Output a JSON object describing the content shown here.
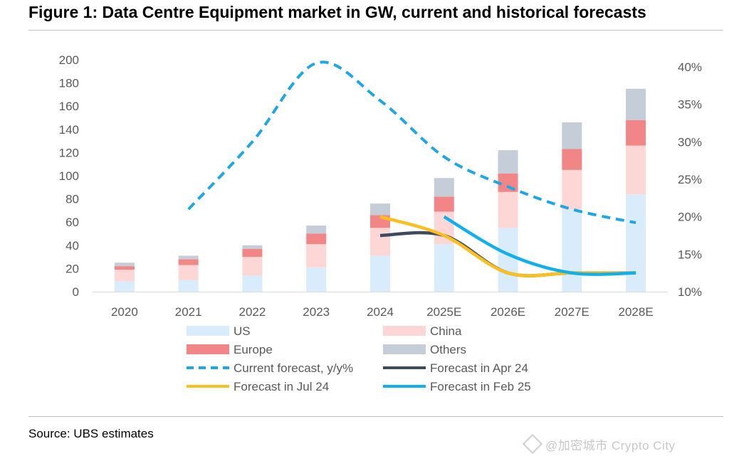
{
  "page": {
    "title": "Figure 1: Data Centre Equipment market in GW, current and historical forecasts",
    "source": "Source: UBS estimates",
    "watermark": "@加密城市 Crypto City"
  },
  "chart_data": {
    "type": "bar",
    "stacked": true,
    "categories": [
      "2020",
      "2021",
      "2022",
      "2023",
      "2024",
      "2025E",
      "2026E",
      "2027E",
      "2028E"
    ],
    "y_left": {
      "min": 0,
      "max": 200,
      "ticks": [
        "0",
        "20",
        "40",
        "60",
        "80",
        "100",
        "120",
        "140",
        "160",
        "180",
        "200"
      ]
    },
    "y_right": {
      "min": 10,
      "max": 40,
      "ticks": [
        "10%",
        "15%",
        "20%",
        "25%",
        "30%",
        "35%",
        "40%"
      ]
    },
    "bar_series": [
      {
        "name": "US",
        "color": "#d9ecfb",
        "values": [
          9,
          10,
          14,
          21,
          31,
          41,
          55,
          71,
          84
        ]
      },
      {
        "name": "China",
        "color": "#fdd6d6",
        "values": [
          10,
          13,
          16,
          20,
          24,
          28,
          31,
          34,
          42
        ]
      },
      {
        "name": "Europe",
        "color": "#f28585",
        "values": [
          3,
          5,
          7,
          9,
          11,
          13,
          16,
          18,
          22
        ]
      },
      {
        "name": "Others",
        "color": "#c4cdd8",
        "values": [
          3,
          3,
          3,
          7,
          10,
          16,
          20,
          23,
          27
        ]
      }
    ],
    "line_series": [
      {
        "name": "Current forecast, y/y%",
        "color": "#1ea7e6",
        "style": "dashed",
        "axis": "right",
        "points": [
          [
            "2021",
            21
          ],
          [
            "2022",
            30
          ],
          [
            "2023",
            40.5
          ],
          [
            "2024",
            35.5
          ],
          [
            "2025E",
            28
          ],
          [
            "2026E",
            24
          ],
          [
            "2027E",
            21
          ],
          [
            "2028E",
            19.2
          ]
        ]
      },
      {
        "name": "Forecast in Apr 24",
        "color": "#404a5e",
        "style": "solid",
        "axis": "right",
        "points": [
          [
            "2024",
            17.5
          ],
          [
            "2025E",
            17.5
          ],
          [
            "2026E",
            12.5
          ],
          [
            "2027E",
            12.5
          ],
          [
            "2028E",
            12.5
          ]
        ]
      },
      {
        "name": "Forecast in Jul 24",
        "color": "#fbbf1f",
        "style": "solid",
        "axis": "right",
        "points": [
          [
            "2024",
            20
          ],
          [
            "2025E",
            17.5
          ],
          [
            "2026E",
            12.5
          ],
          [
            "2027E",
            12.5
          ],
          [
            "2028E",
            12.5
          ]
        ]
      },
      {
        "name": "Forecast in Feb 25",
        "color": "#12b0ea",
        "style": "solid",
        "axis": "right",
        "points": [
          [
            "2025E",
            20
          ],
          [
            "2026E",
            15
          ],
          [
            "2027E",
            12.5
          ],
          [
            "2028E",
            12.5
          ]
        ]
      }
    ],
    "legend": [
      {
        "label": "US",
        "type": "box",
        "color": "#d9ecfb"
      },
      {
        "label": "China",
        "type": "box",
        "color": "#fdd6d6"
      },
      {
        "label": "Europe",
        "type": "box",
        "color": "#f28585"
      },
      {
        "label": "Others",
        "type": "box",
        "color": "#c4cdd8"
      },
      {
        "label": "Current forecast, y/y%",
        "type": "dash",
        "color": "#1ea7e6"
      },
      {
        "label": "Forecast in Apr 24",
        "type": "line",
        "color": "#404a5e"
      },
      {
        "label": "Forecast in Jul 24",
        "type": "line",
        "color": "#fbbf1f"
      },
      {
        "label": "Forecast in Feb 25",
        "type": "line",
        "color": "#12b0ea"
      }
    ],
    "legend_placement": "bottom",
    "grid": false
  }
}
